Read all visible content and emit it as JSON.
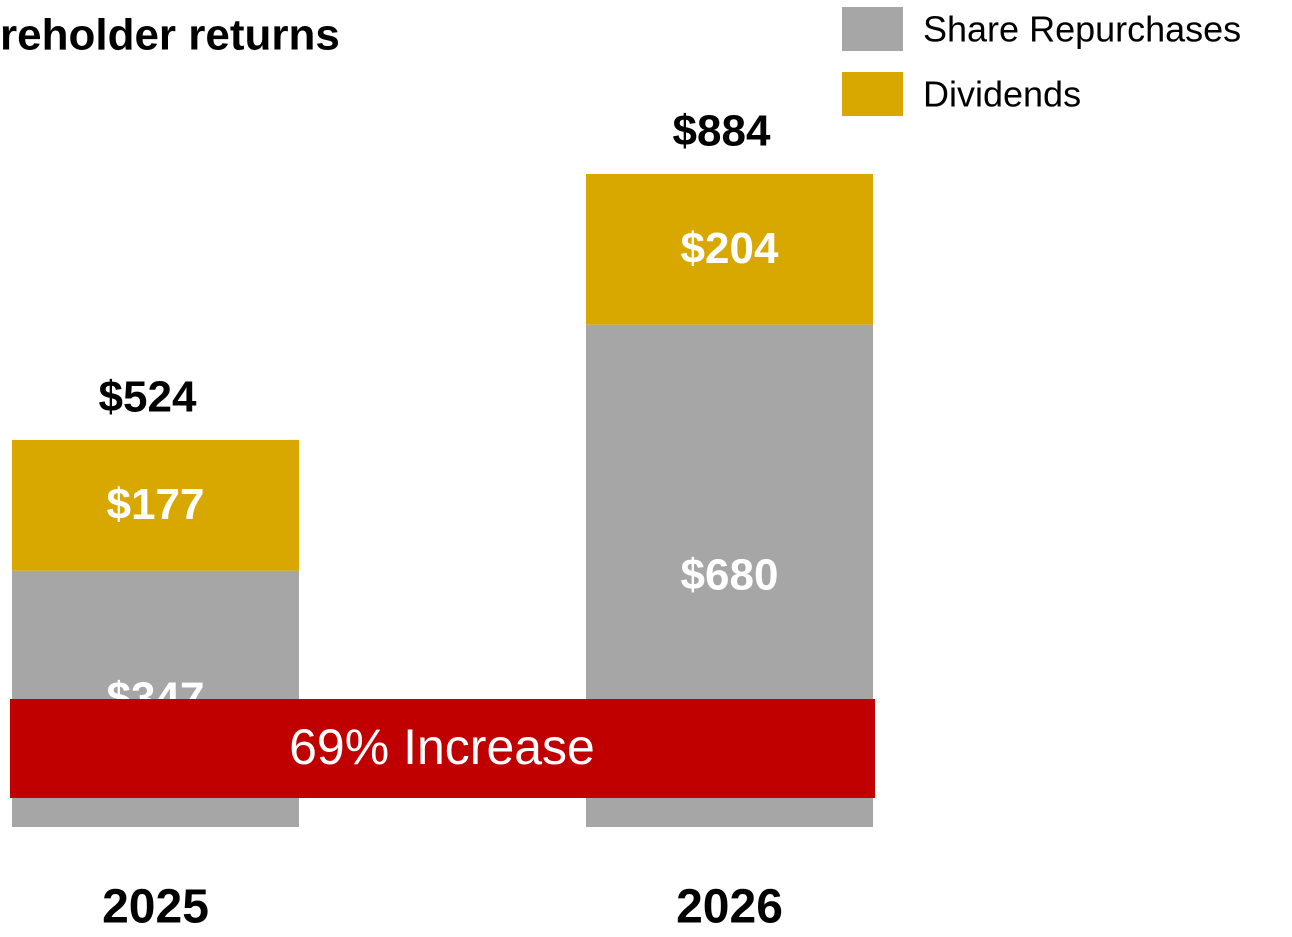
{
  "chart_data": {
    "type": "stacked_bar",
    "title": "reholder returns",
    "categories": [
      "2025",
      "2026"
    ],
    "series": [
      {
        "name": "Share Repurchases",
        "color": "#a6a6a6",
        "values": [
          347,
          680
        ],
        "value_labels": [
          "$347",
          "$680"
        ]
      },
      {
        "name": "Dividends",
        "color": "#d9a800",
        "values": [
          177,
          204
        ],
        "value_labels": [
          "$177",
          "$204"
        ]
      }
    ],
    "totals": [
      524,
      884
    ],
    "total_labels": [
      "$524",
      "$884"
    ],
    "annotation": {
      "text": "69% Increase",
      "color": "#c00000"
    }
  }
}
